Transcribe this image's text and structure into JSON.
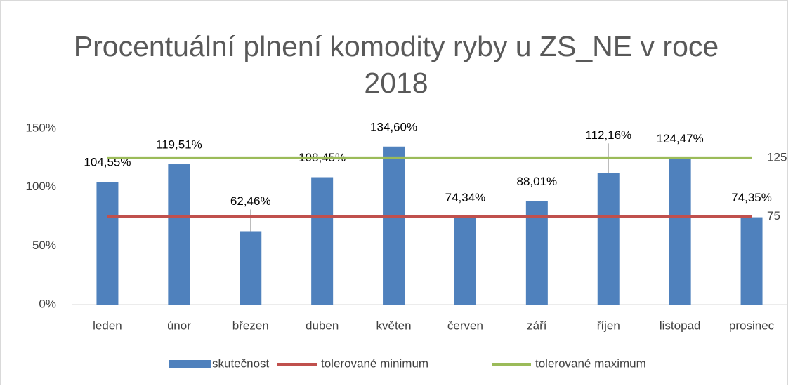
{
  "chart_data": {
    "type": "bar",
    "title": "Procentuální plnení komodity ryby u ZS_NE v roce 2018",
    "categories": [
      "leden",
      "únor",
      "březen",
      "duben",
      "květen",
      "červen",
      "září",
      "říjen",
      "listopad",
      "prosinec"
    ],
    "series": [
      {
        "name": "skutečnost",
        "type": "bar",
        "color": "#4f81bd",
        "values": [
          104.55,
          119.51,
          62.46,
          108.45,
          134.6,
          74.34,
          88.01,
          112.16,
          124.47,
          74.35
        ],
        "value_labels": [
          "104,55%",
          "119,51%",
          "62,46%",
          "108,45%",
          "134,60%",
          "74,34%",
          "88,01%",
          "112,16%",
          "124,47%",
          "74,35%"
        ]
      },
      {
        "name": "tolerované minimum",
        "type": "line",
        "color": "#c0504d",
        "values": [
          75,
          75,
          75,
          75,
          75,
          75,
          75,
          75,
          75,
          75
        ]
      },
      {
        "name": "tolerované maximum",
        "type": "line",
        "color": "#9bbb59",
        "values": [
          125,
          125,
          125,
          125,
          125,
          125,
          125,
          125,
          125,
          125
        ]
      }
    ],
    "ylim": [
      0,
      150
    ],
    "yticks": [
      {
        "value": 0,
        "label": "0%"
      },
      {
        "value": 50,
        "label": "50%"
      },
      {
        "value": 100,
        "label": "100%"
      },
      {
        "value": 150,
        "label": "150%"
      }
    ],
    "grid": false,
    "legend": "bottom"
  }
}
